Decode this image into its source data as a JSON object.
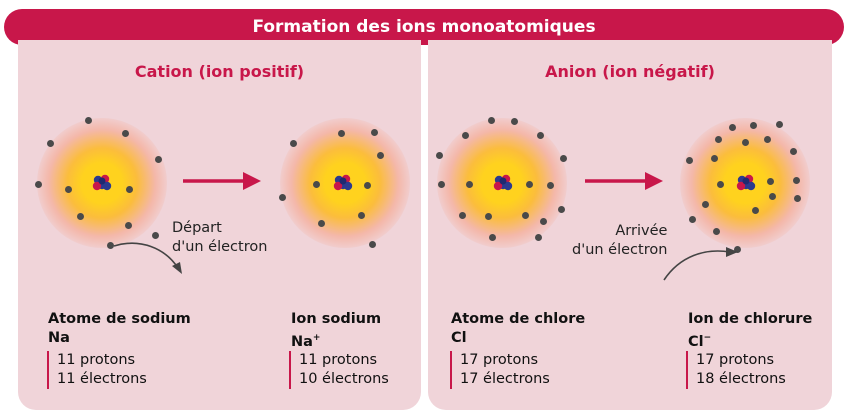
{
  "title": "Formation des ions monoatomiques",
  "colors": {
    "accent": "#c8174a",
    "panel": "#f0d4d9",
    "electron": "#4a4a4a",
    "core": "#ffd21e"
  },
  "cation": {
    "heading": "Cation (ion positif)",
    "process": "Départ d'un électron",
    "process_line1": "Départ",
    "process_line2": "d'un électron",
    "atom": {
      "name": "Atome de sodium",
      "symbol": "Na",
      "protons": "11 protons",
      "electrons": "11 électrons"
    },
    "ion": {
      "name": "Ion sodium",
      "symbol": "Na",
      "charge": "+",
      "protons": "11 protons",
      "electrons": "10 électrons"
    }
  },
  "anion": {
    "heading": "Anion (ion négatif)",
    "process": "Arrivée d'un électron",
    "process_line1": "Arrivée",
    "process_line2": "d'un électron",
    "atom": {
      "name": "Atome de chlore",
      "symbol": "Cl",
      "protons": "17 protons",
      "electrons": "17 électrons"
    },
    "ion": {
      "name": "Ion de chlorure",
      "symbol": "Cl",
      "charge": "−",
      "protons": "17 protons",
      "electrons": "18 électrons"
    }
  }
}
